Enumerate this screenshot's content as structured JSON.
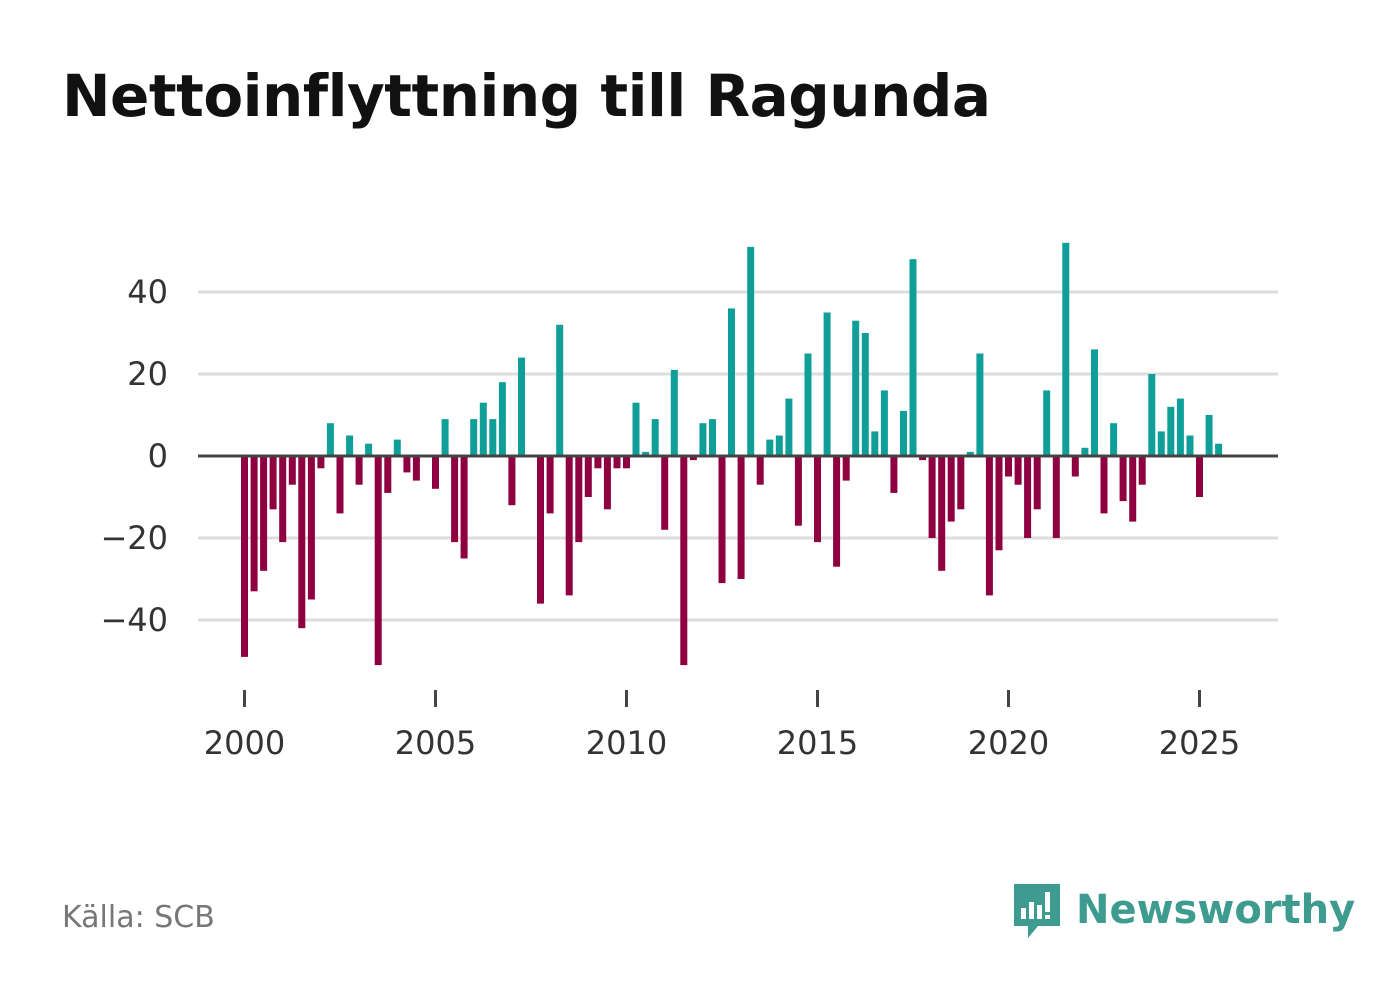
{
  "title": "Nettoinflyttning till Ragunda",
  "source": "Källa: SCB",
  "brand": {
    "name": "Newsworthy",
    "icon": "newsworthy-logo-icon",
    "color": "#3d9b90"
  },
  "colors": {
    "positive": "#109e99",
    "negative": "#8f0040",
    "grid": "#dddddd",
    "zero_line": "#444444",
    "axis_text": "#333333"
  },
  "chart_data": {
    "type": "bar",
    "title": "Nettoinflyttning till Ragunda",
    "xlabel": "",
    "ylabel": "",
    "xlim": [
      1998.8,
      2027.0
    ],
    "ylim": [
      -58,
      58
    ],
    "x_ticks": [
      2000,
      2005,
      2010,
      2015,
      2020,
      2025
    ],
    "y_ticks": [
      40,
      20,
      0,
      -20,
      -40
    ],
    "y_tick_labels": [
      "40",
      "20",
      "0",
      "−20",
      "−40"
    ],
    "grid": true,
    "x": [
      2000.0,
      2000.25,
      2000.5,
      2000.75,
      2001.0,
      2001.25,
      2001.5,
      2001.75,
      2002.0,
      2002.25,
      2002.5,
      2002.75,
      2003.0,
      2003.25,
      2003.5,
      2003.75,
      2004.0,
      2004.25,
      2004.5,
      2004.75,
      2005.0,
      2005.25,
      2005.5,
      2005.75,
      2006.0,
      2006.25,
      2006.5,
      2006.75,
      2007.0,
      2007.25,
      2007.5,
      2007.75,
      2008.0,
      2008.25,
      2008.5,
      2008.75,
      2009.0,
      2009.25,
      2009.5,
      2009.75,
      2010.0,
      2010.25,
      2010.5,
      2010.75,
      2011.0,
      2011.25,
      2011.5,
      2011.75,
      2012.0,
      2012.25,
      2012.5,
      2012.75,
      2013.0,
      2013.25,
      2013.5,
      2013.75,
      2014.0,
      2014.25,
      2014.5,
      2014.75,
      2015.0,
      2015.25,
      2015.5,
      2015.75,
      2016.0,
      2016.25,
      2016.5,
      2016.75,
      2017.0,
      2017.25,
      2017.5,
      2017.75,
      2018.0,
      2018.25,
      2018.5,
      2018.75,
      2019.0,
      2019.25,
      2019.5,
      2019.75,
      2020.0,
      2020.25,
      2020.5,
      2020.75,
      2021.0,
      2021.25,
      2021.5,
      2021.75,
      2022.0,
      2022.25,
      2022.5,
      2022.75,
      2023.0,
      2023.25,
      2023.5,
      2023.75,
      2024.0,
      2024.25,
      2024.5,
      2024.75,
      2025.0,
      2025.25,
      2025.5
    ],
    "values": [
      -49,
      -33,
      -28,
      -13,
      -21,
      -7,
      -42,
      -35,
      -3,
      8,
      -14,
      5,
      -7,
      3,
      -51,
      -9,
      4,
      -4,
      -6,
      0,
      -8,
      9,
      -21,
      -25,
      9,
      13,
      9,
      18,
      -12,
      24,
      0,
      -36,
      -14,
      32,
      -34,
      -21,
      -10,
      -3,
      -13,
      -3,
      -3,
      13,
      1,
      9,
      -18,
      21,
      -51,
      -1,
      8,
      9,
      -31,
      36,
      -30,
      51,
      -7,
      4,
      5,
      14,
      -17,
      25,
      -21,
      35,
      -27,
      -6,
      33,
      30,
      6,
      16,
      -9,
      11,
      48,
      -1,
      -20,
      -28,
      -16,
      -13,
      1,
      25,
      -34,
      -23,
      -5,
      -7,
      -20,
      -13,
      16,
      -20,
      52,
      -5,
      2,
      26,
      -14,
      8,
      -11,
      -16,
      -7,
      20,
      6,
      12,
      14,
      5,
      -10,
      10,
      3
    ]
  }
}
